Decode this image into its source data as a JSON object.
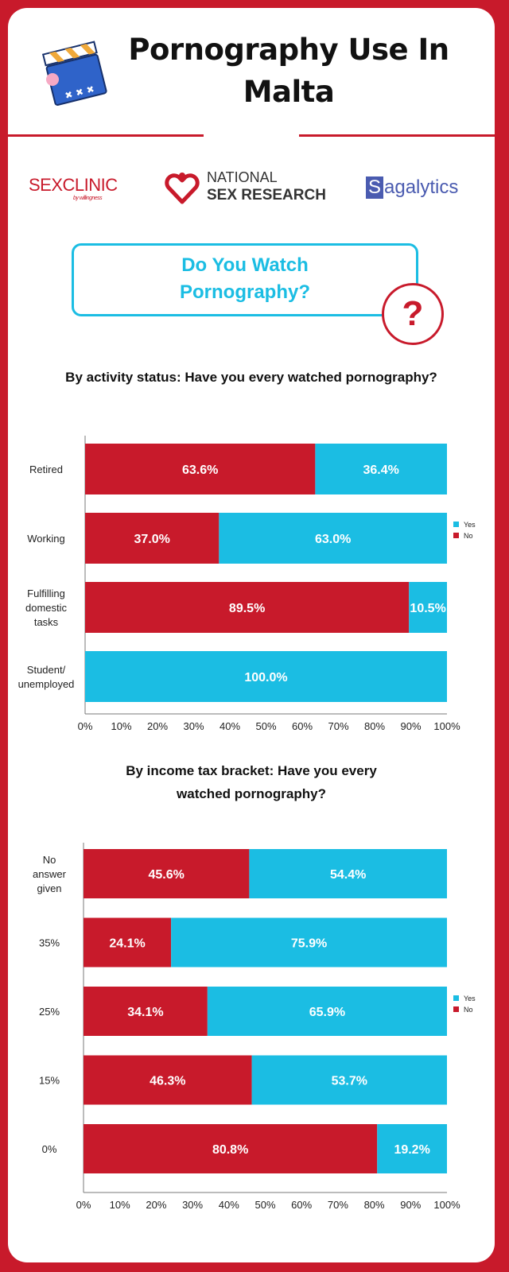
{
  "title_line1": "Pornography Use In",
  "title_line2": "Malta",
  "logos": {
    "sex_clinic": "SEXCLINIC",
    "sex_clinic_sub": "by willingness",
    "national_line1": "NATIONAL",
    "national_line2": "SEX RESEARCH",
    "sagalytics_first": "S",
    "sagalytics_rest": "agalytics"
  },
  "question": {
    "line1": "Do You Watch",
    "line2": "Pornography?",
    "mark": "?"
  },
  "colors": {
    "no": "#c81a2b",
    "yes": "#1bbde3",
    "axis": "#7a7a7a"
  },
  "chart_data": [
    {
      "type": "bar",
      "orientation": "horizontal",
      "stacked": true,
      "title": "By activity status: Have you every watched pornography?",
      "categories": [
        "Retired",
        "Working",
        "Fulfilling domestic tasks",
        "Student/ unemployed"
      ],
      "series": [
        {
          "name": "No",
          "values": [
            63.6,
            37.0,
            89.5,
            0
          ]
        },
        {
          "name": "Yes",
          "values": [
            36.4,
            63.0,
            10.5,
            100.0
          ]
        }
      ],
      "data_labels_no": [
        "63.6%",
        "37.0%",
        "89.5%",
        ""
      ],
      "data_labels_yes": [
        "36.4%",
        "63.0%",
        "10.5%",
        "100.0%"
      ],
      "xticks": [
        "0%",
        "10%",
        "20%",
        "30%",
        "40%",
        "50%",
        "60%",
        "70%",
        "80%",
        "90%",
        "100%"
      ],
      "xlim": [
        0,
        100
      ],
      "legend": [
        "Yes",
        "No"
      ],
      "legend_position": "right"
    },
    {
      "type": "bar",
      "orientation": "horizontal",
      "stacked": true,
      "title_line1": "By income tax bracket: Have you every",
      "title_line2": "watched pornography?",
      "categories": [
        "No answer given",
        "35%",
        "25%",
        "15%",
        "0%"
      ],
      "series": [
        {
          "name": "No",
          "values": [
            45.6,
            24.1,
            34.1,
            46.3,
            80.8
          ]
        },
        {
          "name": "Yes",
          "values": [
            54.4,
            75.9,
            65.9,
            53.7,
            19.2
          ]
        }
      ],
      "data_labels_no": [
        "45.6%",
        "24.1%",
        "34.1%",
        "46.3%",
        "80.8%"
      ],
      "data_labels_yes": [
        "54.4%",
        "75.9%",
        "65.9%",
        "53.7%",
        "19.2%"
      ],
      "xticks": [
        "0%",
        "10%",
        "20%",
        "30%",
        "40%",
        "50%",
        "60%",
        "70%",
        "80%",
        "90%",
        "100%"
      ],
      "xlim": [
        0,
        100
      ],
      "legend": [
        "Yes",
        "No"
      ],
      "legend_position": "right"
    }
  ]
}
